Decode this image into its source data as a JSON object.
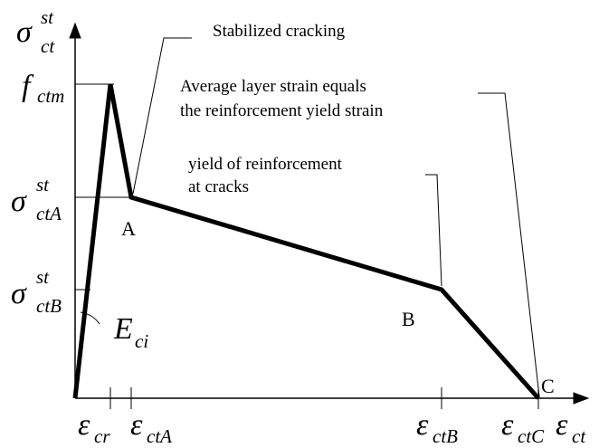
{
  "y_axis_label": {
    "base": "σ",
    "sup": "st",
    "sub": "ct"
  },
  "x_axis_label": {
    "base": "ε",
    "sub": "ct"
  },
  "y_marks": [
    {
      "base": "f",
      "sub": "ctm"
    },
    {
      "base": "σ",
      "sup": "st",
      "sub": "ctA"
    },
    {
      "base": "σ",
      "sup": "st",
      "sub": "ctB"
    }
  ],
  "x_marks": [
    {
      "base": "ε",
      "sub": "cr"
    },
    {
      "base": "ε",
      "sub": "ctA"
    },
    {
      "base": "ε",
      "sub": "ctB"
    },
    {
      "base": "ε",
      "sub": "ctC"
    }
  ],
  "modulus_label": {
    "base": "E",
    "sub": "ci"
  },
  "points": [
    "A",
    "B",
    "C"
  ],
  "annotations": [
    {
      "lines": [
        "Stabilized cracking"
      ]
    },
    {
      "lines": [
        "Average layer strain equals",
        "the reinforcement yield strain"
      ]
    },
    {
      "lines": [
        "yield of reinforcement",
        "at cracks"
      ]
    }
  ]
}
